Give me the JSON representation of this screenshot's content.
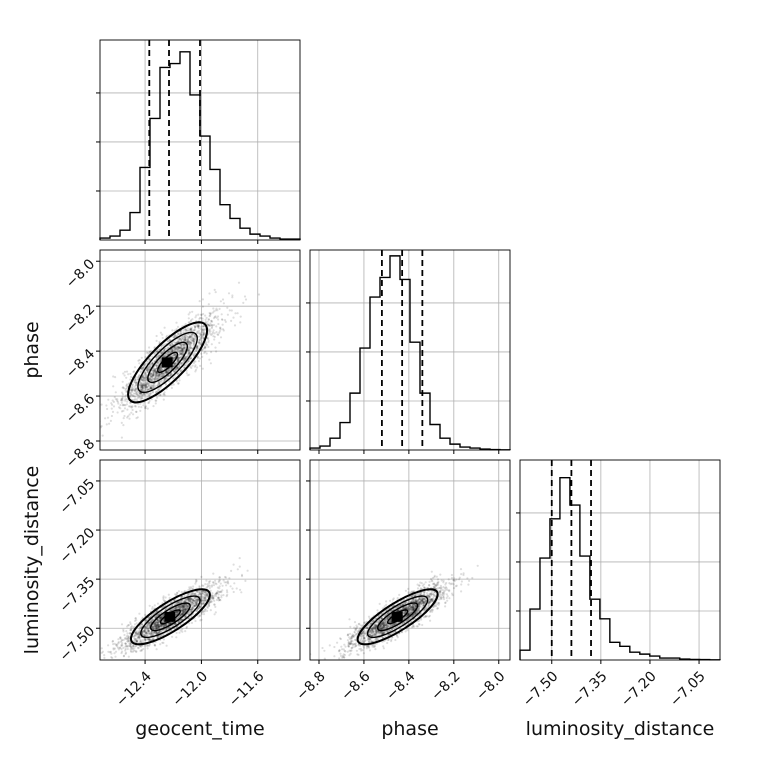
{
  "chart_data": {
    "type": "corner",
    "parameters": [
      "geocent_time",
      "phase",
      "luminosity_distance"
    ],
    "xlabels": [
      "geocent_time",
      "phase",
      "luminosity_distance"
    ],
    "ylabels": [
      "phase",
      "luminosity_distance"
    ],
    "grid": true,
    "ranges": {
      "geocent_time": [
        -12.72,
        -11.3
      ],
      "phase": [
        -8.84,
        -7.95
      ],
      "luminosity_distance": [
        -7.597,
        -6.986
      ]
    },
    "ticks": {
      "geocent_time": {
        "values": [
          -12.4,
          -12.0,
          -11.6
        ],
        "labels": [
          "−12.4",
          "−12.0",
          "−11.6"
        ]
      },
      "phase": {
        "values": [
          -8.8,
          -8.6,
          -8.4,
          -8.2,
          -8.0
        ],
        "labels": [
          "−8.8",
          "−8.6",
          "−8.4",
          "−8.2",
          "−8.0"
        ]
      },
      "luminosity_distance": {
        "values": [
          -7.5,
          -7.35,
          -7.2,
          -7.05
        ],
        "labels": [
          "−7.50",
          "−7.35",
          "−7.20",
          "−7.05"
        ]
      }
    },
    "hist_ticks": [
      0.25,
      0.5,
      0.75
    ],
    "marginals": [
      {
        "parameter": "geocent_time",
        "bins": [
          -12.72,
          -12.649,
          -12.578,
          -12.507,
          -12.436,
          -12.365,
          -12.294,
          -12.223,
          -12.152,
          -12.081,
          -12.01,
          -11.939,
          -11.868,
          -11.797,
          -11.726,
          -11.655,
          -11.584,
          -11.513,
          -11.442,
          -11.371,
          -11.3
        ],
        "density": [
          0.01,
          0.02,
          0.05,
          0.14,
          0.37,
          0.62,
          0.88,
          0.9,
          0.96,
          0.74,
          0.53,
          0.36,
          0.18,
          0.11,
          0.06,
          0.03,
          0.02,
          0.01,
          0.005,
          0.005
        ],
        "quantiles": [
          -12.37,
          -12.23,
          -12.01
        ]
      },
      {
        "parameter": "phase",
        "bins": [
          -8.84,
          -8.7955,
          -8.751,
          -8.7065,
          -8.662,
          -8.6175,
          -8.573,
          -8.5285,
          -8.484,
          -8.4395,
          -8.395,
          -8.3505,
          -8.306,
          -8.2615,
          -8.217,
          -8.1725,
          -8.128,
          -8.0835,
          -8.039,
          -7.9945,
          -7.95
        ],
        "density": [
          0.01,
          0.02,
          0.06,
          0.14,
          0.29,
          0.52,
          0.78,
          0.88,
          0.99,
          0.87,
          0.55,
          0.29,
          0.13,
          0.06,
          0.03,
          0.015,
          0.01,
          0.005,
          0.002,
          0.001
        ],
        "quantiles": [
          -8.52,
          -8.43,
          -8.34
        ]
      },
      {
        "parameter": "luminosity_distance",
        "bins": [
          -7.597,
          -7.5665,
          -7.536,
          -7.5055,
          -7.475,
          -7.4445,
          -7.414,
          -7.3835,
          -7.353,
          -7.3225,
          -7.292,
          -7.2615,
          -7.231,
          -7.2005,
          -7.17,
          -7.1395,
          -7.109,
          -7.0785,
          -7.048,
          -7.0175,
          -6.986
        ],
        "density": [
          0.05,
          0.26,
          0.52,
          0.72,
          0.93,
          0.79,
          0.53,
          0.31,
          0.21,
          0.09,
          0.07,
          0.04,
          0.03,
          0.02,
          0.01,
          0.01,
          0.005,
          0.003,
          0.002,
          0.001
        ],
        "quantiles": [
          -7.5,
          -7.44,
          -7.38
        ]
      }
    ],
    "joint_panels": [
      {
        "x": "geocent_time",
        "y": "phase",
        "center": [
          -12.24,
          -8.45
        ],
        "sd": [
          0.14,
          0.089
        ],
        "correlation": 0.8,
        "contour_levels_sigma": [
          0.5,
          1.0,
          1.5,
          2.0
        ]
      },
      {
        "x": "geocent_time",
        "y": "luminosity_distance",
        "center": [
          -12.22,
          -7.465
        ],
        "sd": [
          0.14,
          0.042
        ],
        "correlation": 0.8,
        "contour_levels_sigma": [
          0.5,
          1.0,
          1.5,
          2.0
        ]
      },
      {
        "x": "phase",
        "y": "luminosity_distance",
        "center": [
          -8.45,
          -7.465
        ],
        "sd": [
          0.089,
          0.042
        ],
        "correlation": 0.82,
        "contour_levels_sigma": [
          0.5,
          1.0,
          1.5,
          2.0
        ]
      }
    ]
  }
}
